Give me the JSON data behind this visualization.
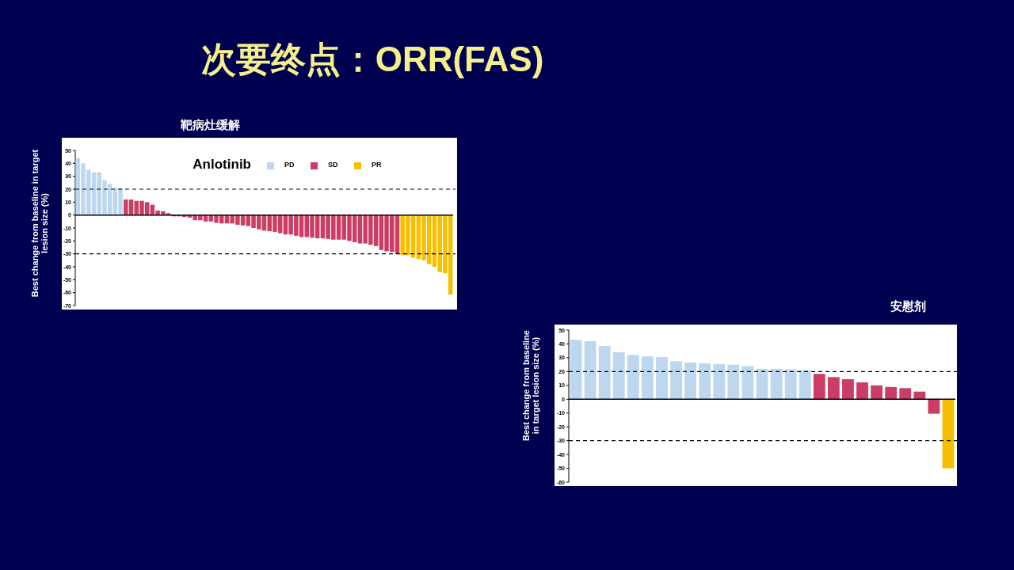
{
  "chart_data": [
    {
      "type": "bar",
      "title": "靶病灶缓解",
      "ylabel": "Best change from baseline in target lesion size (%)",
      "legend_title": "Anlotinib",
      "annotations": [
        "次要终点：ORR(FAS)"
      ],
      "categories": [
        null,
        null,
        null,
        null,
        null,
        null,
        null,
        null,
        null,
        null,
        null,
        null,
        null,
        null,
        null,
        null,
        null,
        null,
        null,
        null,
        null,
        null,
        null,
        null,
        null,
        null,
        null,
        null,
        null,
        null,
        null,
        null,
        null,
        null,
        null,
        null,
        null,
        null,
        null,
        null,
        null,
        null,
        null,
        null,
        null,
        null,
        null,
        null,
        null,
        null,
        null,
        null,
        null,
        null,
        null,
        null,
        null,
        null,
        null,
        null,
        null,
        null,
        null,
        null,
        null,
        null,
        null,
        null,
        null,
        null,
        null
      ],
      "series": [
        {
          "name": "PD",
          "color": "#bdd7ee",
          "values": [
            44,
            40,
            35,
            33,
            33,
            27,
            24,
            21,
            21,
            null,
            null,
            null,
            null,
            null,
            null,
            null,
            null,
            null,
            null,
            null,
            null,
            null,
            null,
            null,
            null,
            null,
            null,
            null,
            null,
            null,
            null,
            null,
            null,
            null,
            null,
            null,
            null,
            null,
            null,
            null,
            null,
            null,
            null,
            null,
            null,
            null,
            null,
            null,
            null,
            null,
            null,
            null,
            null,
            null,
            null,
            null,
            null,
            null,
            null,
            null,
            null,
            null,
            null,
            null,
            null,
            null,
            null,
            null,
            null,
            null,
            null
          ]
        },
        {
          "name": "SD",
          "color": "#cc3d66",
          "values": [
            null,
            null,
            null,
            null,
            null,
            null,
            null,
            null,
            null,
            12,
            12,
            11,
            11,
            10,
            8,
            3.5,
            3,
            1.5,
            -1,
            -1,
            -1.5,
            -2,
            -4,
            -4,
            -5,
            -5,
            -6,
            -6.5,
            -6.5,
            -6.5,
            -7.5,
            -8,
            -8.5,
            -10,
            -11,
            -12,
            -12.5,
            -13,
            -14,
            -15,
            -15,
            -16,
            -17,
            -17,
            -17.5,
            -18,
            -18,
            -18.5,
            -19,
            -19,
            -19,
            -20,
            -21,
            -22,
            -22,
            -23,
            -24,
            -27,
            -28,
            -28.5,
            -30,
            null,
            null,
            null,
            null,
            null,
            null,
            null,
            null,
            null,
            null
          ]
        },
        {
          "name": "PR",
          "color": "#f5c000",
          "values": [
            null,
            null,
            null,
            null,
            null,
            null,
            null,
            null,
            null,
            null,
            null,
            null,
            null,
            null,
            null,
            null,
            null,
            null,
            null,
            null,
            null,
            null,
            null,
            null,
            null,
            null,
            null,
            null,
            null,
            null,
            null,
            null,
            null,
            null,
            null,
            null,
            null,
            null,
            null,
            null,
            null,
            null,
            null,
            null,
            null,
            null,
            null,
            null,
            null,
            null,
            null,
            null,
            null,
            null,
            null,
            null,
            null,
            null,
            null,
            null,
            null,
            -31,
            -31,
            -33,
            -34,
            -35,
            -38,
            -40,
            -44,
            -45,
            -61.5
          ]
        }
      ],
      "ylim": [
        -70,
        50
      ],
      "yticks": [
        -70,
        -60,
        -50,
        -40,
        -30,
        -20,
        -10,
        0,
        10,
        20,
        30,
        40,
        50
      ],
      "tick_labels": "y",
      "legend": "top right",
      "ref_lines": [
        {
          "axis": "y",
          "value": 20,
          "line_style": "dashed"
        },
        {
          "axis": "y",
          "value": -30,
          "line_style": "dashed"
        }
      ]
    },
    {
      "type": "bar",
      "title": "安慰剂",
      "ylabel": "Best change from baseline in target lesion size (%)",
      "categories": [
        null,
        null,
        null,
        null,
        null,
        null,
        null,
        null,
        null,
        null,
        null,
        null,
        null,
        null,
        null,
        null,
        null,
        null,
        null,
        null,
        null,
        null,
        null,
        null,
        null,
        null,
        null
      ],
      "series": [
        {
          "color": "#bdd7ee",
          "values": [
            43,
            42,
            38.5,
            34,
            32,
            31,
            30.5,
            27.5,
            26.5,
            26,
            25.5,
            25,
            24,
            22,
            22,
            21.5,
            21,
            null,
            null,
            null,
            null,
            null,
            null,
            null,
            null,
            null,
            null
          ]
        },
        {
          "color": "#cc3d66",
          "values": [
            null,
            null,
            null,
            null,
            null,
            null,
            null,
            null,
            null,
            null,
            null,
            null,
            null,
            null,
            null,
            null,
            null,
            18.3,
            16,
            14.5,
            12.2,
            10,
            8.8,
            8,
            5.5,
            -10.5,
            null
          ]
        },
        {
          "color": "#f5c000",
          "values": [
            null,
            null,
            null,
            null,
            null,
            null,
            null,
            null,
            null,
            null,
            null,
            null,
            null,
            null,
            null,
            null,
            null,
            null,
            null,
            null,
            null,
            null,
            null,
            null,
            null,
            null,
            -50
          ]
        }
      ],
      "ylim": [
        -60,
        50
      ],
      "yticks": [
        -60,
        -50,
        -40,
        -30,
        -20,
        -10,
        0,
        10,
        20,
        30,
        40,
        50
      ],
      "tick_labels": "y",
      "ref_lines": [
        {
          "axis": "y",
          "value": 20,
          "line_style": "dashed"
        },
        {
          "axis": "y",
          "value": -30,
          "line_style": "dashed"
        }
      ]
    }
  ]
}
